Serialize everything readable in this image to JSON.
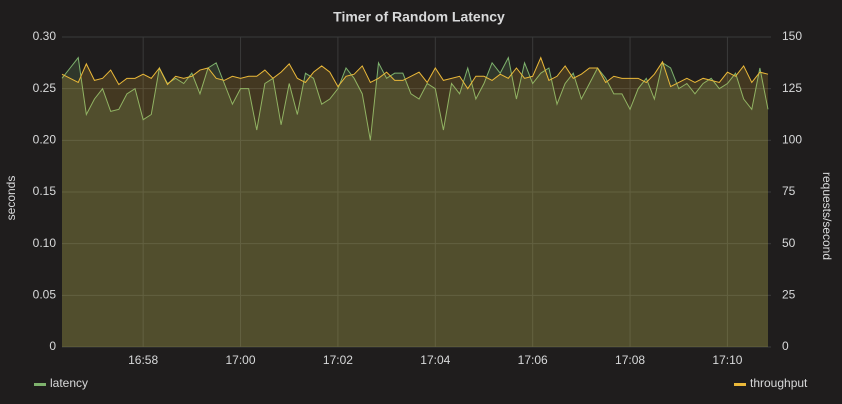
{
  "chart_data": {
    "type": "line",
    "title": "Timer of Random Latency",
    "ylabel": "seconds",
    "y2label": "requests/second",
    "categories": [
      null,
      null,
      null,
      null,
      null,
      null,
      null,
      null,
      null,
      null,
      "16:58",
      null,
      null,
      null,
      null,
      null,
      null,
      null,
      null,
      null,
      null,
      null,
      "17:00",
      null,
      null,
      null,
      null,
      null,
      null,
      null,
      null,
      null,
      null,
      null,
      "17:02",
      null,
      null,
      null,
      null,
      null,
      null,
      null,
      null,
      null,
      null,
      null,
      "17:04",
      null,
      null,
      null,
      null,
      null,
      null,
      null,
      null,
      null,
      null,
      null,
      "17:06",
      null,
      null,
      null,
      null,
      null,
      null,
      null,
      null,
      null,
      null,
      null,
      "17:08",
      null,
      null,
      null,
      null,
      null,
      null,
      null,
      null,
      null,
      null,
      null,
      "17:10",
      null,
      null,
      null,
      null,
      null
    ],
    "ylim": [
      0,
      0.3
    ],
    "yticks": [
      0,
      0.05,
      {
        "value": 0.1,
        "label": "0.10"
      },
      0.15,
      {
        "value": 0.2,
        "label": "0.20"
      },
      0.25,
      {
        "value": 0.3,
        "label": "0.30"
      }
    ],
    "y2lim": [
      0,
      150
    ],
    "y2ticks": [
      0,
      25,
      50,
      75,
      100,
      125,
      150
    ],
    "grid": true,
    "legend": "bottom",
    "series": [
      {
        "name": "latency",
        "color": "#7eb26d",
        "values": [
          0.26,
          0.27,
          0.28,
          0.225,
          0.24,
          0.25,
          0.228,
          0.23,
          0.245,
          0.25,
          0.22,
          0.225,
          0.27,
          0.255,
          0.26,
          0.255,
          0.265,
          0.245,
          0.27,
          0.275,
          0.255,
          0.235,
          0.25,
          0.25,
          0.21,
          0.255,
          0.26,
          0.215,
          0.255,
          0.225,
          0.265,
          0.26,
          0.235,
          0.24,
          0.25,
          0.27,
          0.26,
          0.245,
          0.2,
          0.275,
          0.26,
          0.265,
          0.265,
          0.245,
          0.24,
          0.255,
          0.25,
          0.21,
          0.255,
          0.245,
          0.27,
          0.24,
          0.255,
          0.275,
          0.265,
          0.28,
          0.24,
          0.275,
          0.255,
          0.265,
          0.27,
          0.235,
          0.255,
          0.265,
          0.24,
          0.255,
          0.27,
          0.26,
          0.245,
          0.245,
          0.23,
          0.25,
          0.26,
          0.24,
          0.275,
          0.27,
          0.25,
          0.255,
          0.245,
          0.255,
          0.26,
          0.25,
          0.255,
          0.265,
          0.24,
          0.23,
          0.27,
          0.23
        ]
      },
      {
        "name": "throughput",
        "color": "#eab839",
        "axis": "y2",
        "values": [
          132,
          130,
          128,
          137,
          129,
          130,
          134,
          127,
          130,
          130,
          132,
          130,
          135,
          127,
          131,
          130,
          131,
          134,
          135,
          130,
          129,
          131,
          130,
          131,
          131,
          134,
          130,
          133,
          137,
          130,
          128,
          133,
          136,
          133,
          126,
          131,
          132,
          136,
          128,
          130,
          133,
          129,
          129,
          131,
          133,
          128,
          135,
          129,
          130,
          131,
          125,
          131,
          131,
          129,
          132,
          130,
          135,
          130,
          131,
          140,
          129,
          131,
          136,
          130,
          132,
          135,
          135,
          128,
          131,
          130,
          130,
          130,
          128,
          132,
          138,
          126,
          128,
          130,
          128,
          130,
          129,
          128,
          133,
          131,
          136,
          128,
          133,
          132
        ]
      }
    ]
  }
}
